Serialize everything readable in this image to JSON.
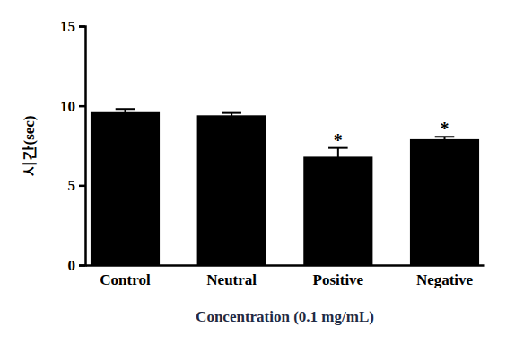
{
  "chart_data": {
    "type": "bar",
    "x_label": "Concentration (0.1 mg/mL)",
    "y_label": "시간(sec)",
    "categories": [
      "Control",
      "Neutral",
      "Positive",
      "Negative"
    ],
    "values": [
      9.6,
      9.4,
      6.8,
      7.9
    ],
    "errors": [
      0.2,
      0.15,
      0.55,
      0.15
    ],
    "annotations": [
      null,
      null,
      "*",
      "*"
    ],
    "color": "#000000",
    "ylim": [
      0,
      15
    ],
    "yticks": [
      0,
      5,
      10,
      15
    ],
    "grid": false
  }
}
